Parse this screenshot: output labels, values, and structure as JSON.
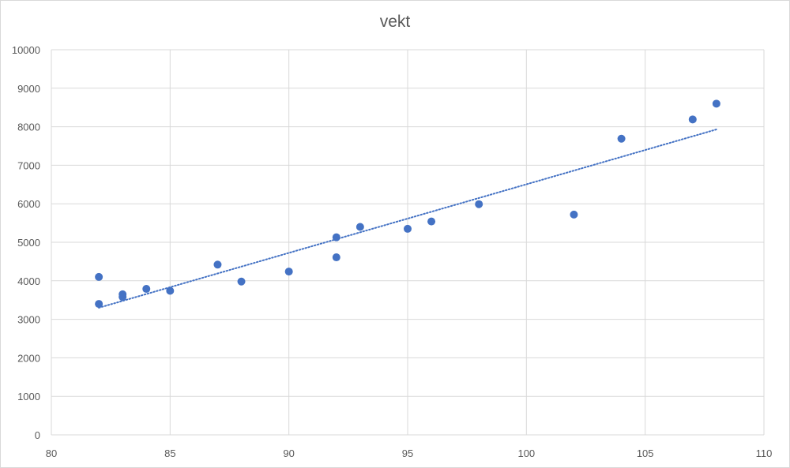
{
  "chart_data": {
    "type": "scatter",
    "title": "vekt",
    "xlabel": "",
    "ylabel": "",
    "xlim": [
      80,
      110
    ],
    "ylim": [
      0,
      10000
    ],
    "xticks": [
      80,
      85,
      90,
      95,
      100,
      105,
      110
    ],
    "yticks": [
      0,
      1000,
      2000,
      3000,
      4000,
      5000,
      6000,
      7000,
      8000,
      9000,
      10000
    ],
    "grid": true,
    "legend": "none",
    "colors": {
      "points": "#4472c4",
      "trendline": "#4472c4",
      "grid": "#d9d9d9",
      "text": "#595959"
    },
    "series": [
      {
        "points": [
          {
            "x": 82,
            "y": 4100
          },
          {
            "x": 82,
            "y": 3400
          },
          {
            "x": 83,
            "y": 3650
          },
          {
            "x": 83,
            "y": 3580
          },
          {
            "x": 84,
            "y": 3790
          },
          {
            "x": 85,
            "y": 3740
          },
          {
            "x": 87,
            "y": 4420
          },
          {
            "x": 88,
            "y": 3980
          },
          {
            "x": 90,
            "y": 4240
          },
          {
            "x": 92,
            "y": 5130
          },
          {
            "x": 92,
            "y": 4610
          },
          {
            "x": 93,
            "y": 5400
          },
          {
            "x": 95,
            "y": 5350
          },
          {
            "x": 96,
            "y": 5540
          },
          {
            "x": 98,
            "y": 5990
          },
          {
            "x": 102,
            "y": 5720
          },
          {
            "x": 104,
            "y": 7690
          },
          {
            "x": 107,
            "y": 8190
          },
          {
            "x": 108,
            "y": 8600
          }
        ],
        "trendline": {
          "type": "linear",
          "style": "dotted",
          "x_range": [
            82,
            108
          ],
          "y_start": 3300,
          "y_end": 7930
        }
      }
    ]
  }
}
